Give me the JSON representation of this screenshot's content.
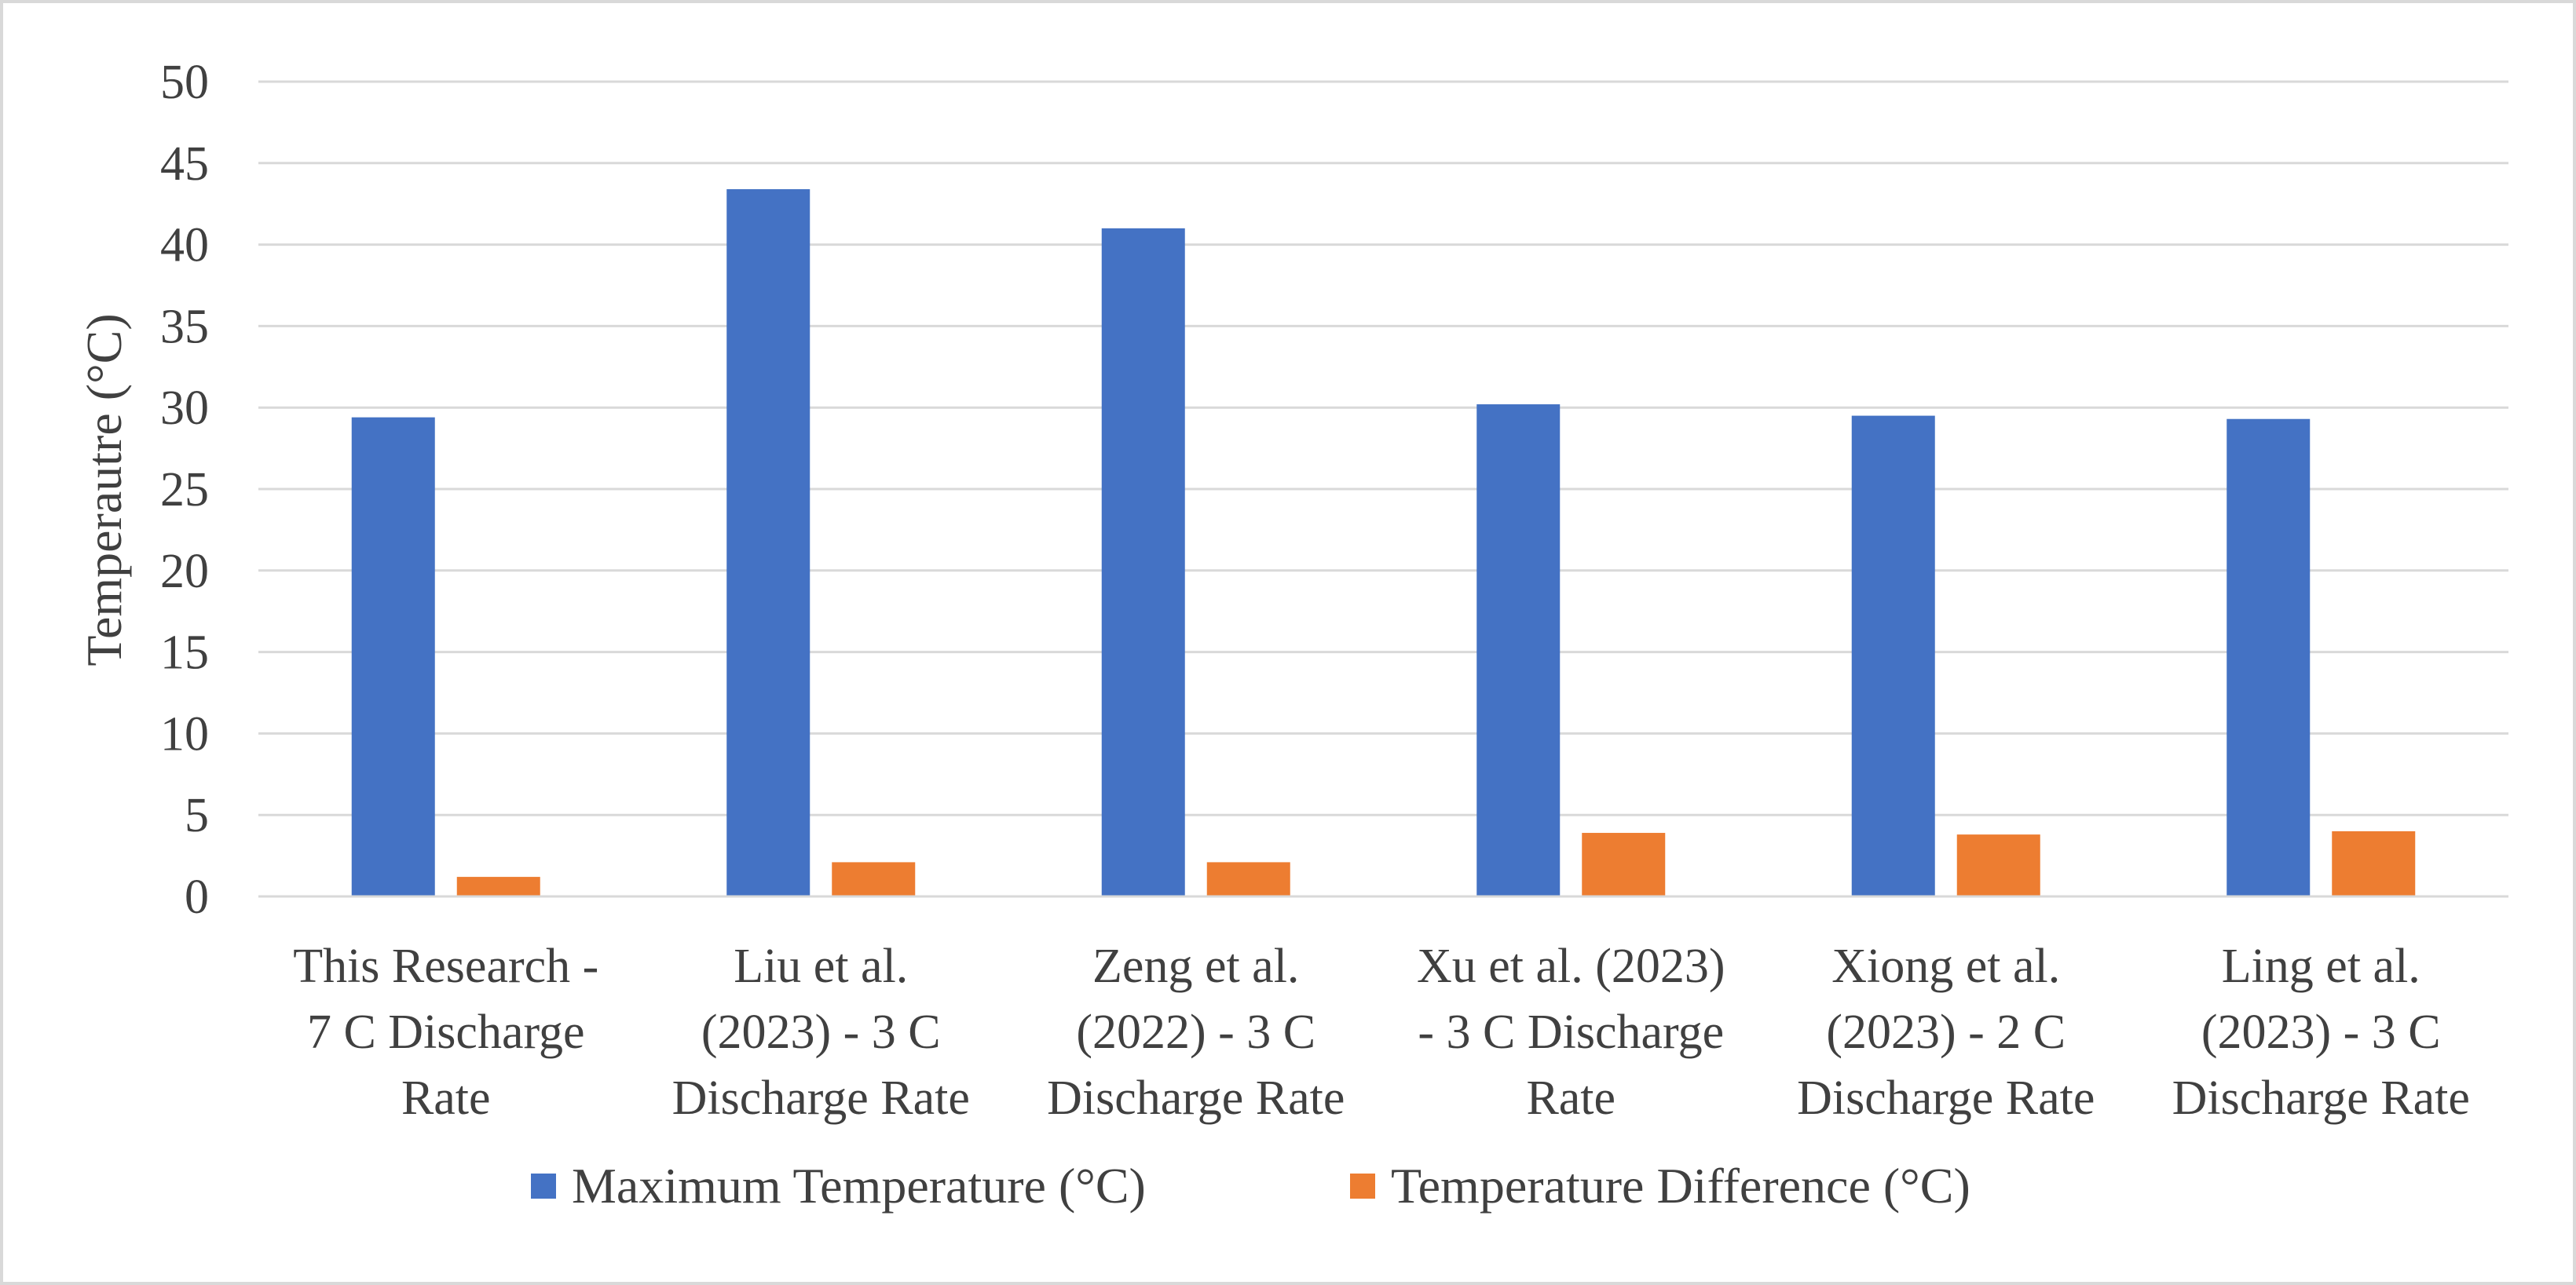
{
  "chart_data": {
    "type": "bar",
    "title": "",
    "xlabel": "",
    "ylabel": "Temperautre (°C)",
    "ylim": [
      0,
      50
    ],
    "yticks": [
      "0",
      "5",
      "10",
      "15",
      "20",
      "25",
      "30",
      "35",
      "40",
      "45",
      "50"
    ],
    "grid": true,
    "legend_position": "bottom",
    "categories": [
      [
        "This Research -",
        "7 C Discharge",
        "Rate"
      ],
      [
        "Liu et al.",
        "(2023) - 3 C",
        "Discharge Rate"
      ],
      [
        "Zeng et al.",
        "(2022) - 3 C",
        "Discharge Rate"
      ],
      [
        "Xu et al. (2023)",
        "- 3 C Discharge",
        "Rate"
      ],
      [
        "Xiong et al.",
        "(2023) - 2 C",
        "Discharge Rate"
      ],
      [
        "Ling et al.",
        "(2023) - 3 C",
        "Discharge Rate"
      ]
    ],
    "series": [
      {
        "name": "Maximum Temperature (°C)",
        "color": "#4472c4",
        "values": [
          29.4,
          43.4,
          41.0,
          30.2,
          29.5,
          29.3
        ]
      },
      {
        "name": "Temperature Difference (°C)",
        "color": "#ed7d31",
        "values": [
          1.2,
          2.1,
          2.1,
          3.9,
          3.8,
          4.0
        ]
      }
    ]
  }
}
